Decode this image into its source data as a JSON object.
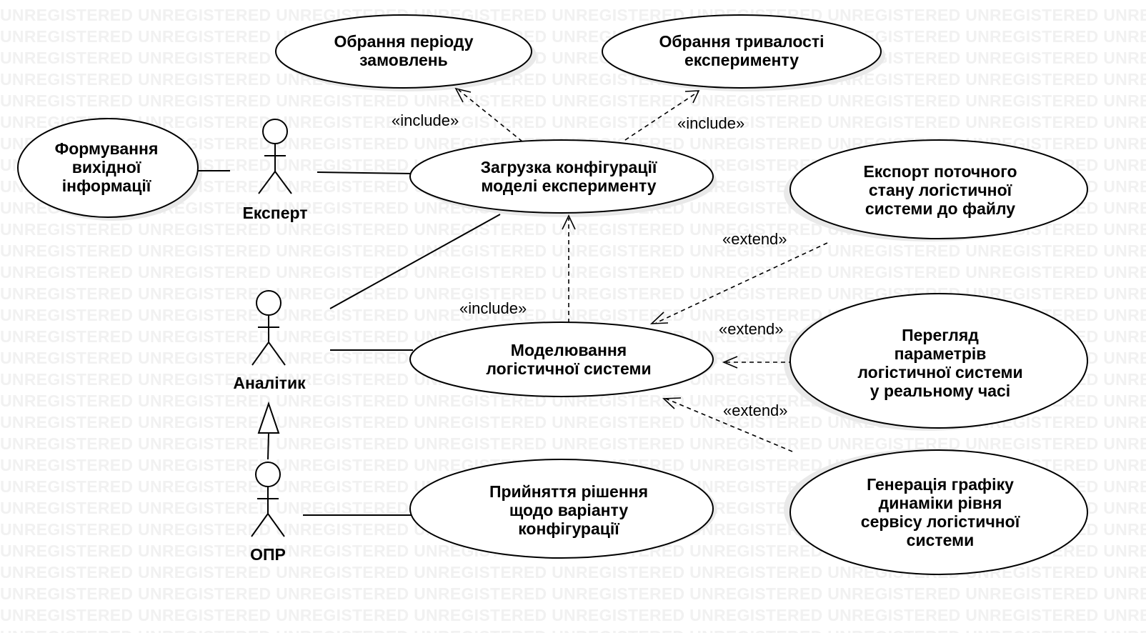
{
  "watermark": "UNREGISTERED",
  "actors": {
    "expert": "Експерт",
    "analyst": "Аналітик",
    "opr": "ОПР"
  },
  "use_cases": {
    "orders_period": [
      "Обрання періоду",
      "замовлень"
    ],
    "experiment_duration": [
      "Обрання тривалості",
      "експерименту"
    ],
    "output_info": [
      "Формування",
      "вихідної",
      "інформації"
    ],
    "load_config": [
      "Загрузка конфігурації",
      "моделі експерименту"
    ],
    "export_state": [
      "Експорт поточного",
      "стану логістичної",
      "системи до файлу"
    ],
    "modeling": [
      "Моделювання",
      "логістичної системи"
    ],
    "realtime_view": [
      "Перегляд",
      "параметрів",
      "логістичної системи",
      "у реальному часі"
    ],
    "decision": [
      "Прийняття рішення",
      "щодо варіанту",
      "конфігурації"
    ],
    "service_chart": [
      "Генерація графіку",
      "динаміки рівня",
      "сервісу логістичної",
      "системи"
    ]
  },
  "relations": {
    "include": "«include»",
    "extend": "«extend»"
  }
}
